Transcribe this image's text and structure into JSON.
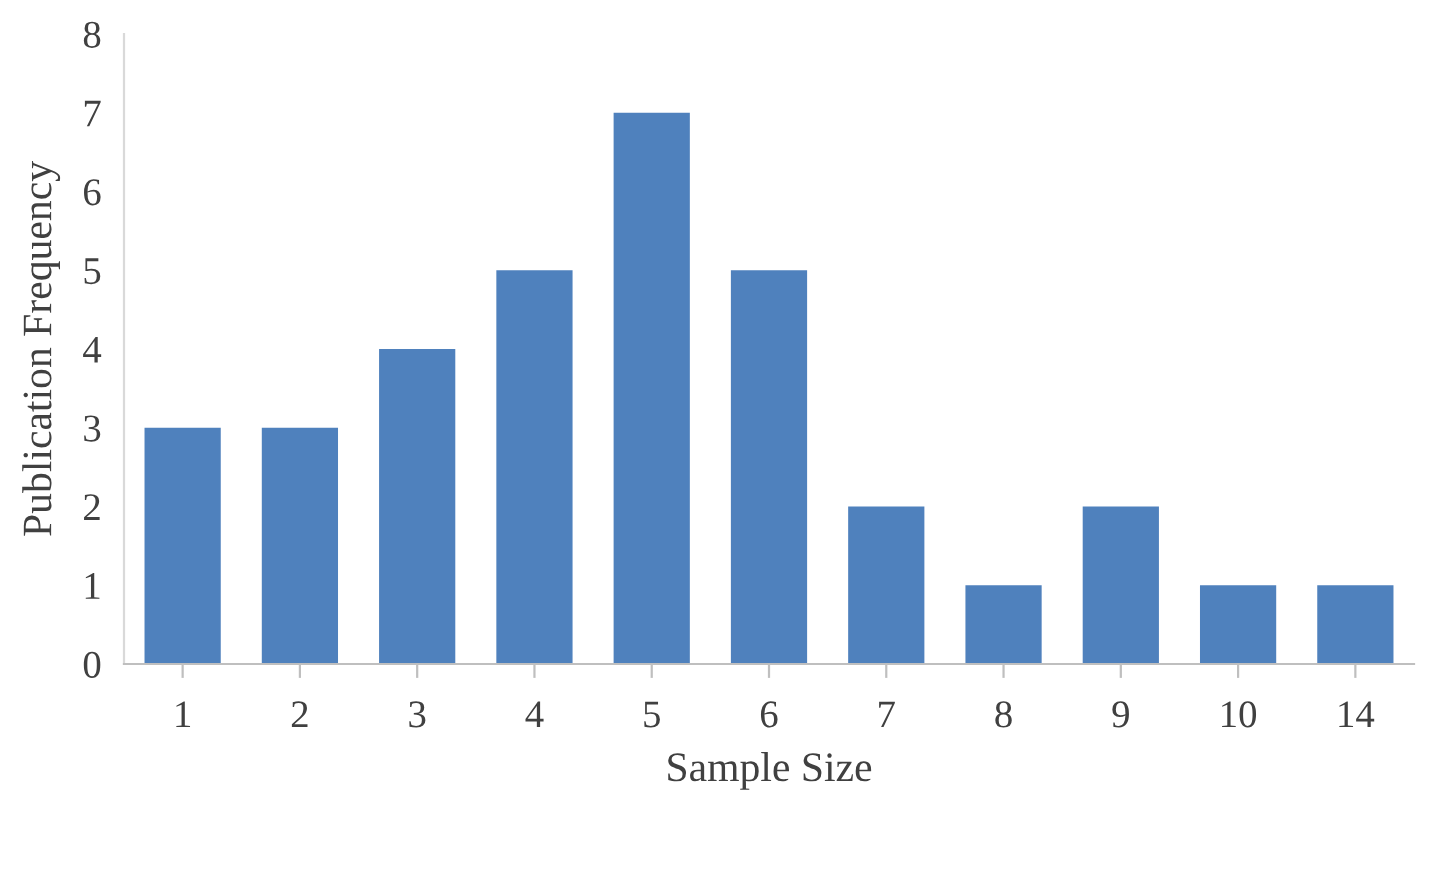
{
  "chart_data": {
    "type": "bar",
    "xlabel": "Sample Size",
    "ylabel": "Publication Frequency",
    "categories": [
      "1",
      "2",
      "3",
      "4",
      "5",
      "6",
      "7",
      "8",
      "9",
      "10",
      "14"
    ],
    "values": [
      3,
      3,
      4,
      5,
      7,
      5,
      2,
      1,
      2,
      1,
      1
    ],
    "color": "#4f81bd",
    "ylim": [
      0,
      8
    ],
    "yticks": [
      0,
      1,
      2,
      3,
      4,
      5,
      6,
      7,
      8
    ],
    "grid": false,
    "legend": false
  }
}
